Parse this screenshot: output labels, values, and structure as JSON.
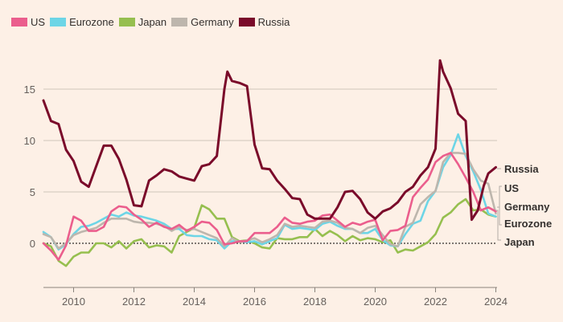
{
  "chart_data": {
    "type": "line",
    "title": "",
    "xlabel": "",
    "ylabel": "",
    "xlim": [
      2009,
      2024.2
    ],
    "ylim": [
      -2.5,
      18
    ],
    "yticks": [
      0,
      5,
      10,
      15
    ],
    "ytick_labels": [
      "0",
      "5",
      "10",
      "15"
    ],
    "xticks": [
      2010,
      2012,
      2014,
      2016,
      2018,
      2020,
      2022,
      2024
    ],
    "xtick_labels": [
      "2010",
      "2012",
      "2014",
      "2016",
      "2018",
      "2020",
      "2022",
      "2024"
    ],
    "grid": true,
    "legend_position": "top-left",
    "zero_line": "dotted",
    "end_labels": [
      "Russia",
      "US",
      "Germany",
      "Eurozone",
      "Japan"
    ],
    "series": [
      {
        "name": "US",
        "color": "#eb5e8d",
        "x": [
          2009.0,
          2009.25,
          2009.5,
          2009.75,
          2010.0,
          2010.25,
          2010.5,
          2010.75,
          2011.0,
          2011.25,
          2011.5,
          2011.75,
          2012.0,
          2012.25,
          2012.5,
          2012.75,
          2013.0,
          2013.25,
          2013.5,
          2013.75,
          2014.0,
          2014.25,
          2014.5,
          2014.75,
          2015.0,
          2015.25,
          2015.5,
          2015.75,
          2016.0,
          2016.25,
          2016.5,
          2016.75,
          2017.0,
          2017.25,
          2017.5,
          2017.75,
          2018.0,
          2018.25,
          2018.5,
          2018.75,
          2019.0,
          2019.25,
          2019.5,
          2019.75,
          2020.0,
          2020.25,
          2020.5,
          2020.75,
          2021.0,
          2021.25,
          2021.5,
          2021.75,
          2022.0,
          2022.25,
          2022.5,
          2022.75,
          2023.0,
          2023.25,
          2023.5,
          2023.75,
          2024.0
        ],
        "values": [
          0.0,
          -0.7,
          -1.6,
          -0.2,
          2.6,
          2.2,
          1.2,
          1.2,
          1.6,
          3.1,
          3.6,
          3.5,
          2.8,
          2.3,
          1.6,
          2.0,
          1.6,
          1.4,
          1.8,
          1.2,
          1.6,
          2.1,
          2.0,
          1.3,
          -0.1,
          0.0,
          0.2,
          0.2,
          1.0,
          1.0,
          1.0,
          1.6,
          2.5,
          2.0,
          1.9,
          2.1,
          2.2,
          2.7,
          2.8,
          2.2,
          1.6,
          2.0,
          1.8,
          2.1,
          2.3,
          0.3,
          1.2,
          1.3,
          1.7,
          4.5,
          5.4,
          6.2,
          7.9,
          8.5,
          8.8,
          7.7,
          6.4,
          5.0,
          3.2,
          3.5,
          3.1
        ]
      },
      {
        "name": "Eurozone",
        "color": "#6dd5e6",
        "x": [
          2009.0,
          2009.25,
          2009.5,
          2009.75,
          2010.0,
          2010.25,
          2010.5,
          2010.75,
          2011.0,
          2011.25,
          2011.5,
          2011.75,
          2012.0,
          2012.25,
          2012.5,
          2012.75,
          2013.0,
          2013.25,
          2013.5,
          2013.75,
          2014.0,
          2014.25,
          2014.5,
          2014.75,
          2015.0,
          2015.25,
          2015.5,
          2015.75,
          2016.0,
          2016.25,
          2016.5,
          2016.75,
          2017.0,
          2017.25,
          2017.5,
          2017.75,
          2018.0,
          2018.25,
          2018.5,
          2018.75,
          2019.0,
          2019.25,
          2019.5,
          2019.75,
          2020.0,
          2020.25,
          2020.5,
          2020.75,
          2021.0,
          2021.25,
          2021.5,
          2021.75,
          2022.0,
          2022.25,
          2022.5,
          2022.75,
          2023.0,
          2023.25,
          2023.5,
          2023.75,
          2024.0
        ],
        "values": [
          1.1,
          0.6,
          -0.6,
          -0.1,
          0.9,
          1.6,
          1.7,
          2.0,
          2.4,
          2.8,
          2.6,
          3.0,
          2.7,
          2.6,
          2.4,
          2.2,
          1.9,
          1.4,
          1.4,
          0.8,
          0.7,
          0.7,
          0.4,
          0.3,
          -0.5,
          0.2,
          0.2,
          0.1,
          0.2,
          -0.1,
          0.2,
          0.5,
          1.8,
          1.4,
          1.5,
          1.4,
          1.3,
          1.9,
          2.1,
          1.7,
          1.4,
          1.4,
          1.0,
          1.0,
          1.4,
          0.3,
          -0.2,
          -0.3,
          0.9,
          1.9,
          2.2,
          4.1,
          5.1,
          7.4,
          8.6,
          10.6,
          8.5,
          7.0,
          5.2,
          2.9,
          2.6
        ]
      },
      {
        "name": "Japan",
        "color": "#96bf4f",
        "x": [
          2009.0,
          2009.25,
          2009.5,
          2009.75,
          2010.0,
          2010.25,
          2010.5,
          2010.75,
          2011.0,
          2011.25,
          2011.5,
          2011.75,
          2012.0,
          2012.25,
          2012.5,
          2012.75,
          2013.0,
          2013.25,
          2013.5,
          2013.75,
          2014.0,
          2014.25,
          2014.5,
          2014.75,
          2015.0,
          2015.25,
          2015.5,
          2015.75,
          2016.0,
          2016.25,
          2016.5,
          2016.75,
          2017.0,
          2017.25,
          2017.5,
          2017.75,
          2018.0,
          2018.25,
          2018.5,
          2018.75,
          2019.0,
          2019.25,
          2019.5,
          2019.75,
          2020.0,
          2020.25,
          2020.5,
          2020.75,
          2021.0,
          2021.25,
          2021.5,
          2021.75,
          2022.0,
          2022.25,
          2022.5,
          2022.75,
          2023.0,
          2023.25,
          2023.5,
          2023.75,
          2024.0
        ],
        "values": [
          0.0,
          -0.3,
          -1.7,
          -2.2,
          -1.3,
          -0.9,
          -0.9,
          0.0,
          0.0,
          -0.4,
          0.2,
          -0.5,
          0.2,
          0.4,
          -0.4,
          -0.2,
          -0.3,
          -0.9,
          0.7,
          1.1,
          1.5,
          3.7,
          3.3,
          2.4,
          2.4,
          0.6,
          0.2,
          0.3,
          0.0,
          -0.4,
          -0.5,
          0.5,
          0.4,
          0.4,
          0.6,
          0.6,
          1.4,
          0.7,
          1.2,
          0.8,
          0.2,
          0.7,
          0.3,
          0.5,
          0.4,
          0.1,
          0.3,
          -0.9,
          -0.6,
          -0.7,
          -0.3,
          0.1,
          0.9,
          2.5,
          3.0,
          3.8,
          4.3,
          3.2,
          3.3,
          2.8,
          2.6
        ]
      },
      {
        "name": "Germany",
        "color": "#bdb6ad",
        "x": [
          2009.0,
          2009.25,
          2009.5,
          2009.75,
          2010.0,
          2010.25,
          2010.5,
          2010.75,
          2011.0,
          2011.25,
          2011.5,
          2011.75,
          2012.0,
          2012.25,
          2012.5,
          2012.75,
          2013.0,
          2013.25,
          2013.5,
          2013.75,
          2014.0,
          2014.25,
          2014.5,
          2014.75,
          2015.0,
          2015.25,
          2015.5,
          2015.75,
          2016.0,
          2016.25,
          2016.5,
          2016.75,
          2017.0,
          2017.25,
          2017.5,
          2017.75,
          2018.0,
          2018.25,
          2018.5,
          2018.75,
          2019.0,
          2019.25,
          2019.5,
          2019.75,
          2020.0,
          2020.25,
          2020.5,
          2020.75,
          2021.0,
          2021.25,
          2021.5,
          2021.75,
          2022.0,
          2022.25,
          2022.5,
          2022.75,
          2023.0,
          2023.25,
          2023.5,
          2023.75,
          2024.0
        ],
        "values": [
          0.9,
          0.6,
          -0.5,
          0.0,
          0.8,
          1.1,
          1.3,
          1.5,
          2.0,
          2.4,
          2.4,
          2.4,
          2.1,
          2.0,
          2.0,
          1.9,
          1.7,
          1.2,
          1.6,
          1.3,
          1.4,
          1.1,
          0.8,
          0.5,
          -0.3,
          0.5,
          0.1,
          0.3,
          0.5,
          0.1,
          0.4,
          0.8,
          1.9,
          1.6,
          1.7,
          1.6,
          1.5,
          2.1,
          2.2,
          2.0,
          1.5,
          1.4,
          1.0,
          1.5,
          1.7,
          0.8,
          -0.1,
          -0.3,
          1.6,
          2.0,
          3.8,
          4.5,
          5.1,
          7.9,
          8.8,
          8.8,
          8.7,
          7.2,
          6.1,
          5.8,
          2.9
        ]
      },
      {
        "name": "Russia",
        "color": "#7a0a2a",
        "x": [
          2009.0,
          2009.25,
          2009.5,
          2009.75,
          2010.0,
          2010.25,
          2010.5,
          2010.75,
          2011.0,
          2011.25,
          2011.5,
          2011.75,
          2012.0,
          2012.25,
          2012.5,
          2012.75,
          2013.0,
          2013.25,
          2013.5,
          2013.75,
          2014.0,
          2014.25,
          2014.5,
          2014.75,
          2015.0,
          2015.1,
          2015.25,
          2015.5,
          2015.75,
          2016.0,
          2016.25,
          2016.5,
          2016.75,
          2017.0,
          2017.25,
          2017.5,
          2017.75,
          2018.0,
          2018.25,
          2018.5,
          2018.75,
          2019.0,
          2019.25,
          2019.5,
          2019.75,
          2020.0,
          2020.25,
          2020.5,
          2020.75,
          2021.0,
          2021.25,
          2021.5,
          2021.75,
          2022.0,
          2022.15,
          2022.25,
          2022.5,
          2022.75,
          2023.0,
          2023.2,
          2023.4,
          2023.6,
          2023.75,
          2024.0
        ],
        "values": [
          13.9,
          11.9,
          11.6,
          9.1,
          8.0,
          6.0,
          5.5,
          7.5,
          9.5,
          9.5,
          8.2,
          6.2,
          3.7,
          3.6,
          6.1,
          6.6,
          7.2,
          7.0,
          6.5,
          6.3,
          6.1,
          7.5,
          7.7,
          8.5,
          15.0,
          16.7,
          15.8,
          15.6,
          15.3,
          9.6,
          7.3,
          7.2,
          6.1,
          5.3,
          4.4,
          4.3,
          2.8,
          2.4,
          2.4,
          2.4,
          3.5,
          5.0,
          5.1,
          4.3,
          3.0,
          2.4,
          3.1,
          3.4,
          4.0,
          5.0,
          5.5,
          6.6,
          7.4,
          9.2,
          17.8,
          16.7,
          15.1,
          12.6,
          11.9,
          2.3,
          3.2,
          5.6,
          6.8,
          7.4
        ]
      }
    ]
  }
}
